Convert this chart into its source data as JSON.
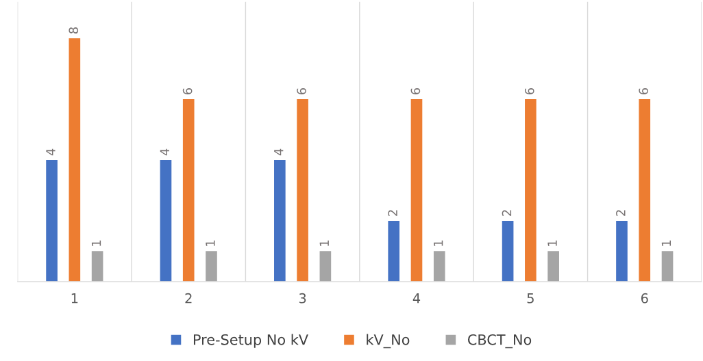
{
  "chart_data": {
    "type": "bar",
    "categories": [
      "1",
      "2",
      "3",
      "4",
      "5",
      "6"
    ],
    "series": [
      {
        "name": "Pre-Setup No kV",
        "color": "#4472c4",
        "values": [
          4,
          4,
          4,
          2,
          2,
          2
        ]
      },
      {
        "name": "kV_No",
        "color": "#ed7d31",
        "values": [
          8,
          6,
          6,
          6,
          6,
          6
        ]
      },
      {
        "name": "CBCT_No",
        "color": "#a5a5a5",
        "values": [
          1,
          1,
          1,
          1,
          1,
          1
        ]
      }
    ],
    "data_labels": true,
    "grid": "x",
    "legend": "bottom"
  }
}
